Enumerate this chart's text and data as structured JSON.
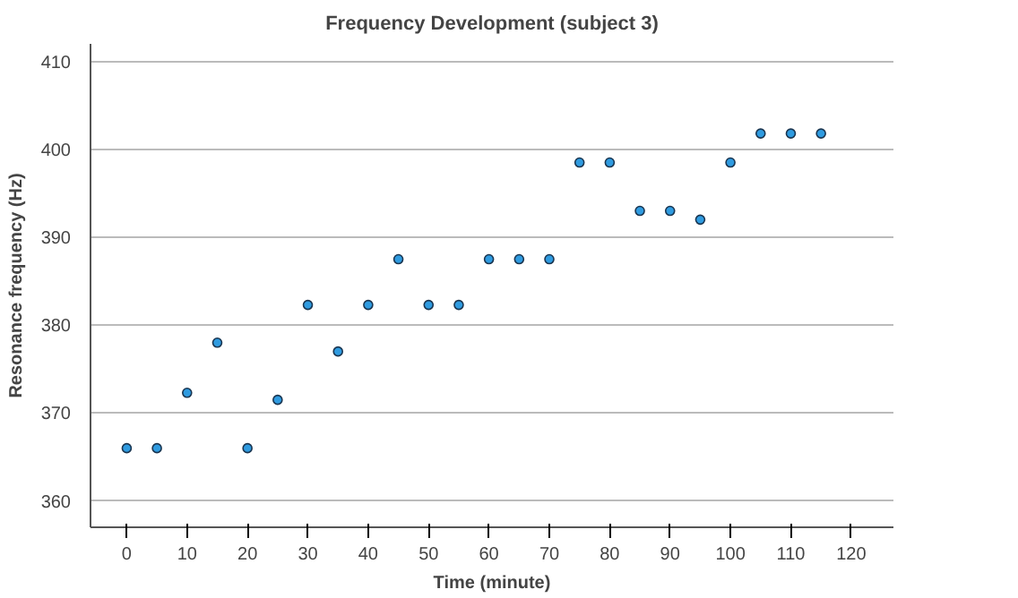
{
  "chart_data": {
    "type": "scatter",
    "title": "Frequency Development (subject 3)",
    "xlabel": "Time (minute)",
    "ylabel": "Resonance frequency (Hz)",
    "x": [
      0,
      5,
      10,
      15,
      20,
      25,
      30,
      35,
      40,
      45,
      50,
      55,
      60,
      65,
      70,
      75,
      80,
      85,
      90,
      95,
      100,
      105,
      110,
      115
    ],
    "series": [
      {
        "color": "#2f9be0",
        "values": [
          366,
          366,
          372.3,
          378,
          366,
          371.5,
          382.3,
          377,
          382.3,
          387.5,
          382.3,
          382.3,
          387.5,
          387.5,
          387.5,
          398.5,
          398.5,
          393,
          393,
          392,
          398.5,
          401.8,
          401.8,
          401.8
        ]
      }
    ],
    "xlim": [
      -6,
      127
    ],
    "ylim": [
      357,
      412
    ],
    "xticks": [
      0,
      10,
      20,
      30,
      40,
      50,
      60,
      70,
      80,
      90,
      100,
      110,
      120
    ],
    "yticks": [
      360,
      370,
      380,
      390,
      400,
      410
    ],
    "grid": "y",
    "marker": "circle"
  }
}
